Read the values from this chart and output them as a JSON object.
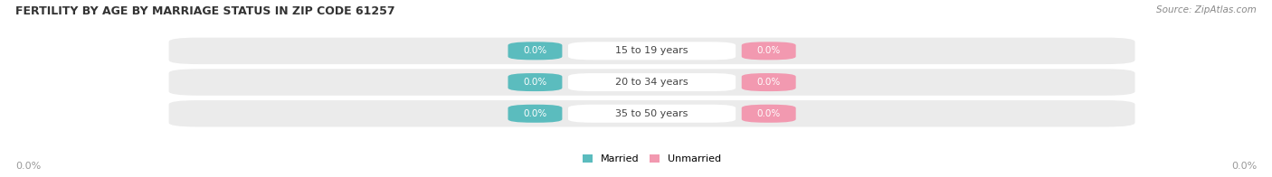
{
  "title": "FERTILITY BY AGE BY MARRIAGE STATUS IN ZIP CODE 61257",
  "source": "Source: ZipAtlas.com",
  "categories": [
    "15 to 19 years",
    "20 to 34 years",
    "35 to 50 years"
  ],
  "married_values": [
    0.0,
    0.0,
    0.0
  ],
  "unmarried_values": [
    0.0,
    0.0,
    0.0
  ],
  "married_color": "#5bbcbe",
  "unmarried_color": "#f299b0",
  "row_bg_color": "#ebebeb",
  "title_color": "#333333",
  "value_text_color": "#ffffff",
  "category_text_color": "#444444",
  "axis_label_color": "#999999",
  "background_color": "#ffffff",
  "legend_married": "Married",
  "legend_unmarried": "Unmarried",
  "x_left_label": "0.0%",
  "x_right_label": "0.0%",
  "figsize": [
    14.06,
    1.96
  ],
  "dpi": 100
}
